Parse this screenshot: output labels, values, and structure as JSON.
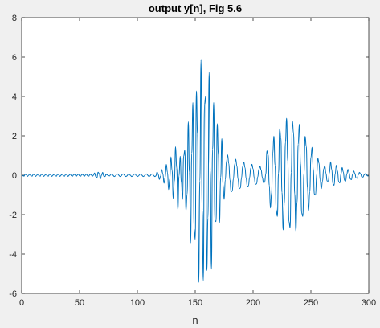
{
  "chart_data": {
    "type": "line",
    "title": "output y[n], Fig 5.6",
    "xlabel": "n",
    "ylabel": "",
    "xlim": [
      0,
      300
    ],
    "ylim": [
      -6,
      8
    ],
    "xticks": [
      0,
      50,
      100,
      150,
      200,
      250,
      300
    ],
    "yticks": [
      -6,
      -4,
      -2,
      0,
      2,
      4,
      6,
      8
    ],
    "grid": false,
    "series": [
      {
        "color": "#0072bd",
        "description": "oscillatory output sequence sampled at integer n from 0 to 300",
        "segments": [
          {
            "n_range": [
              0,
              60
            ],
            "envelope": 0.06,
            "period": 3.5
          },
          {
            "n_range": [
              60,
              75
            ],
            "envelope_peak": 0.2,
            "envelope_peak_n": 67,
            "period": 3.5
          },
          {
            "n_range": [
              75,
              115
            ],
            "envelope": 0.07,
            "period": 5
          },
          {
            "n_range": [
              115,
              135
            ],
            "envelope_rise": [
              0.15,
              1.8
            ],
            "period": 4
          },
          {
            "n_range": [
              135,
              175
            ],
            "envelope_peak": 6.0,
            "envelope_peak_n": 157,
            "period": 3.6
          },
          {
            "n_range": [
              175,
              210
            ],
            "envelope_decay": [
              1.3,
              0.4
            ],
            "period": 7
          },
          {
            "n_range": [
              210,
              265
            ],
            "envelope_peak": 3.0,
            "envelope_peak_n": 232,
            "period": 5.5
          },
          {
            "n_range": [
              265,
              300
            ],
            "envelope_decay": [
              0.9,
              0.04
            ],
            "period": 5
          }
        ]
      }
    ]
  }
}
